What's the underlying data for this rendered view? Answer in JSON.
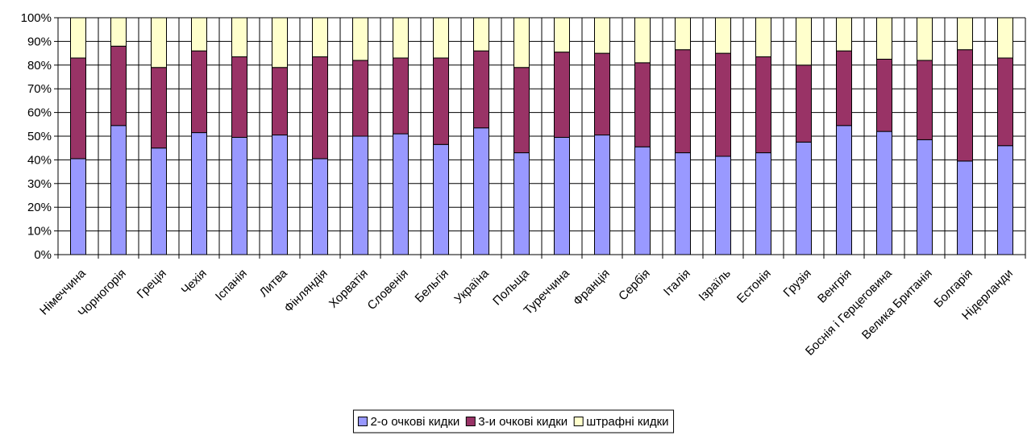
{
  "chart_data": {
    "type": "bar",
    "stacked": true,
    "percent_stacked": true,
    "title": "",
    "xlabel": "",
    "ylabel": "",
    "ylim": [
      0,
      100
    ],
    "y_ticks": [
      "0%",
      "10%",
      "20%",
      "30%",
      "40%",
      "50%",
      "60%",
      "70%",
      "80%",
      "90%",
      "100%"
    ],
    "grid": true,
    "legend_position": "bottom",
    "categories": [
      "Німеччина",
      "Чорногорія",
      "Греція",
      "Чехія",
      "Іспанія",
      "Литва",
      "Фінляндія",
      "Хорватія",
      "Словенія",
      "Бельгія",
      "Україна",
      "Польща",
      "Туреччина",
      "Франція",
      "Сербія",
      "Італія",
      "Ізраїль",
      "Естонія",
      "Грузія",
      "Венгрія",
      "Боснія і Герцеговина",
      "Велика Британія",
      "Болгарія",
      "Нідерланди"
    ],
    "series": [
      {
        "name": "2-о очкові кидки",
        "color": "#9999ff",
        "values": [
          40.5,
          54.5,
          45,
          51.5,
          49.5,
          50.5,
          40.5,
          50,
          51,
          46.5,
          53.5,
          43,
          49.5,
          50.5,
          45.5,
          43,
          41.5,
          43,
          47.5,
          54.5,
          52,
          48.5,
          39.5,
          46
        ]
      },
      {
        "name": "3-и очкові кидки",
        "color": "#993366",
        "values": [
          42.5,
          33.5,
          34,
          34.5,
          34,
          28.5,
          43,
          32,
          32,
          36.5,
          32.5,
          36,
          36,
          34.5,
          35.5,
          43.5,
          43.5,
          40.5,
          32.5,
          31.5,
          30.5,
          33.5,
          47,
          37
        ]
      },
      {
        "name": "штрафні кидки",
        "color": "#ffffcc",
        "values": [
          17,
          12,
          21,
          14,
          16.5,
          21,
          16.5,
          18,
          17,
          17,
          14,
          21,
          14.5,
          15,
          19,
          13.5,
          15,
          16.5,
          20,
          14,
          17.5,
          18,
          13.5,
          17
        ]
      }
    ]
  }
}
